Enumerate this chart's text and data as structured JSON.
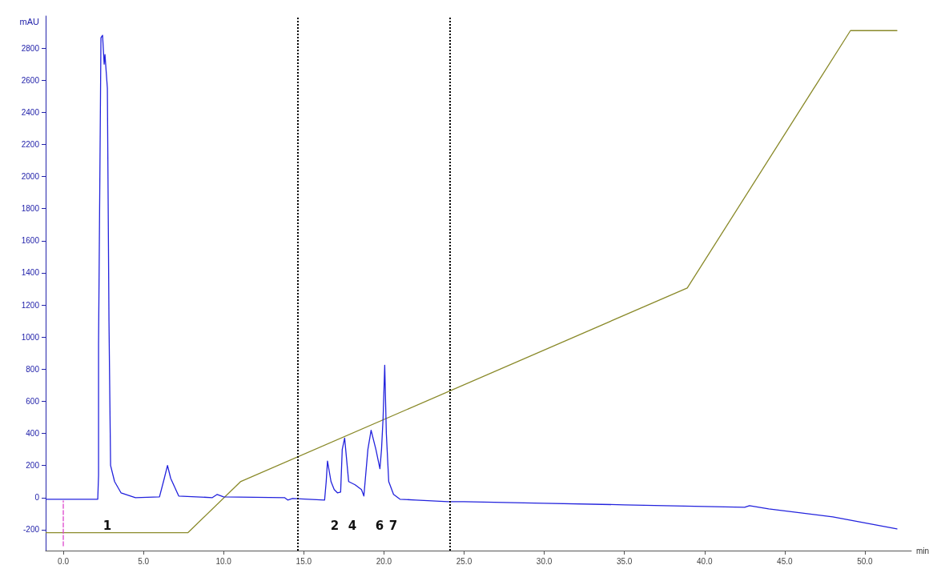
{
  "chart_data": {
    "type": "line",
    "xlabel": "min",
    "ylabel": "mAU",
    "xlim": [
      -1.1,
      52.9
    ],
    "ylim": [
      -330,
      3000
    ],
    "xticks": [
      {
        "value": 0,
        "label": "0.0"
      },
      {
        "value": 5,
        "label": "5.0"
      },
      {
        "value": 10,
        "label": "10.0"
      },
      {
        "value": 15,
        "label": "15.0"
      },
      {
        "value": 20,
        "label": "20.0"
      },
      {
        "value": 25,
        "label": "25.0"
      },
      {
        "value": 30,
        "label": "30.0"
      },
      {
        "value": 35,
        "label": "35.0"
      },
      {
        "value": 40,
        "label": "40.0"
      },
      {
        "value": 45,
        "label": "45.0"
      },
      {
        "value": 50,
        "label": "50.0"
      }
    ],
    "yticks": [
      -200,
      0,
      200,
      400,
      600,
      800,
      1000,
      1200,
      1400,
      1600,
      1800,
      2000,
      2200,
      2400,
      2600,
      2800
    ],
    "grid": false,
    "marker": "none",
    "series": [
      {
        "color": "#8a8a2a",
        "x": [
          -1.08,
          7.78,
          11.05,
          38.92,
          49.1,
          52.0
        ],
        "values": [
          -218,
          -218,
          99,
          1306,
          2909,
          2909
        ]
      },
      {
        "color": "#dd44cc",
        "line_style": "dashed",
        "x": [
          0,
          0
        ],
        "values": [
          -300,
          -20
        ]
      },
      {
        "color": "#2222dd",
        "x": [
          -1.08,
          2.15,
          2.2,
          2.2,
          2.35,
          2.45,
          2.55,
          2.6,
          2.75,
          2.85,
          2.95,
          3.2,
          3.6,
          4.5,
          6.0,
          6.3,
          6.5,
          6.7,
          7.2,
          9.3,
          9.6,
          10,
          13.8,
          14,
          14.3,
          16.3,
          16.4,
          16.48,
          16.7,
          16.9,
          17.1,
          17.3,
          17.4,
          17.55,
          17.8,
          18.2,
          18.6,
          18.75,
          19.0,
          19.2,
          19.5,
          19.75,
          19.85,
          19.95,
          20.05,
          20.15,
          20.3,
          20.6,
          21,
          22,
          24,
          25,
          30,
          35,
          40,
          42.5,
          42.8,
          44,
          48,
          52.0
        ],
        "values": [
          -10,
          -10,
          140,
          960,
          2865,
          2880,
          2700,
          2760,
          2550,
          1100,
          200,
          100,
          30,
          0,
          5,
          120,
          200,
          120,
          10,
          0,
          20,
          5,
          0,
          -15,
          -5,
          -15,
          100,
          228,
          100,
          50,
          30,
          35,
          300,
          371,
          100,
          80,
          50,
          10,
          300,
          420,
          300,
          180,
          300,
          500,
          825,
          400,
          100,
          20,
          -10,
          -15,
          -25,
          -25,
          -35,
          -45,
          -55,
          -60,
          -50,
          -70,
          -120,
          -195
        ]
      }
    ],
    "ref_lines": [
      {
        "axis": "x",
        "value": 14.6,
        "color": "#000000",
        "line_style": "dotted"
      },
      {
        "axis": "x",
        "value": 24.1,
        "color": "#000000",
        "line_style": "dotted"
      }
    ],
    "annotations": [
      "1",
      "2",
      "4",
      "6",
      "7"
    ]
  }
}
